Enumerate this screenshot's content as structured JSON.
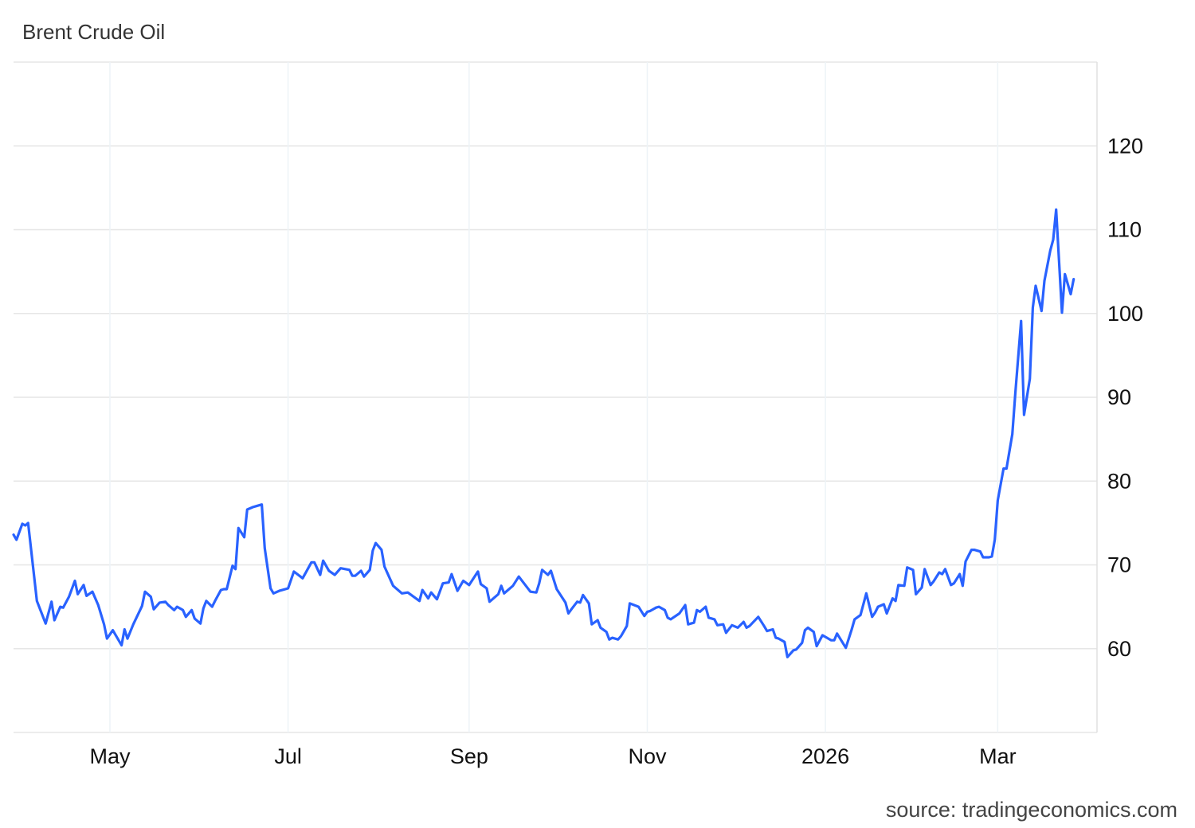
{
  "chart_data": {
    "type": "line",
    "title": "Brent Crude Oil",
    "source": "source: tradingeconomics.com",
    "xlabel": "",
    "ylabel": "",
    "xlim": [
      "2025-03-29",
      "2026-04-04"
    ],
    "ylim": [
      50,
      130
    ],
    "y_axis_position": "right",
    "grid": true,
    "x_ticks": [
      {
        "date": "2025-05-01",
        "label": "May"
      },
      {
        "date": "2025-07-01",
        "label": "Jul"
      },
      {
        "date": "2025-09-01",
        "label": "Sep"
      },
      {
        "date": "2025-11-01",
        "label": "Nov"
      },
      {
        "date": "2026-01-01",
        "label": "2026"
      },
      {
        "date": "2026-03-01",
        "label": "Mar"
      }
    ],
    "y_ticks": [
      60,
      70,
      80,
      90,
      100,
      110,
      120
    ],
    "line_color": "#2962ff",
    "series": [
      {
        "points": [
          [
            "2025-03-29",
            73.6
          ],
          [
            "2025-03-30",
            73.0
          ],
          [
            "2025-04-01",
            74.9
          ],
          [
            "2025-04-02",
            74.7
          ],
          [
            "2025-04-03",
            75.0
          ],
          [
            "2025-04-06",
            65.7
          ],
          [
            "2025-04-09",
            63.0
          ],
          [
            "2025-04-11",
            65.6
          ],
          [
            "2025-04-12",
            63.4
          ],
          [
            "2025-04-14",
            65.0
          ],
          [
            "2025-04-15",
            64.9
          ],
          [
            "2025-04-17",
            66.2
          ],
          [
            "2025-04-19",
            68.1
          ],
          [
            "2025-04-20",
            66.5
          ],
          [
            "2025-04-22",
            67.6
          ],
          [
            "2025-04-23",
            66.3
          ],
          [
            "2025-04-25",
            66.8
          ],
          [
            "2025-04-27",
            65.2
          ],
          [
            "2025-04-29",
            62.9
          ],
          [
            "2025-04-30",
            61.2
          ],
          [
            "2025-05-02",
            62.2
          ],
          [
            "2025-05-05",
            60.4
          ],
          [
            "2025-05-06",
            62.3
          ],
          [
            "2025-05-07",
            61.2
          ],
          [
            "2025-05-09",
            62.9
          ],
          [
            "2025-05-12",
            65.1
          ],
          [
            "2025-05-13",
            66.8
          ],
          [
            "2025-05-15",
            66.2
          ],
          [
            "2025-05-16",
            64.7
          ],
          [
            "2025-05-18",
            65.5
          ],
          [
            "2025-05-20",
            65.6
          ],
          [
            "2025-05-21",
            65.2
          ],
          [
            "2025-05-23",
            64.6
          ],
          [
            "2025-05-24",
            65.0
          ],
          [
            "2025-05-26",
            64.6
          ],
          [
            "2025-05-27",
            63.8
          ],
          [
            "2025-05-29",
            64.6
          ],
          [
            "2025-05-30",
            63.6
          ],
          [
            "2025-06-01",
            63.0
          ],
          [
            "2025-06-02",
            64.8
          ],
          [
            "2025-06-03",
            65.7
          ],
          [
            "2025-06-05",
            65.0
          ],
          [
            "2025-06-06",
            65.7
          ],
          [
            "2025-06-08",
            67.0
          ],
          [
            "2025-06-09",
            67.1
          ],
          [
            "2025-06-10",
            67.1
          ],
          [
            "2025-06-12",
            69.9
          ],
          [
            "2025-06-13",
            69.5
          ],
          [
            "2025-06-14",
            74.4
          ],
          [
            "2025-06-16",
            73.3
          ],
          [
            "2025-06-17",
            76.6
          ],
          [
            "2025-06-19",
            76.9
          ],
          [
            "2025-06-20",
            77.0
          ],
          [
            "2025-06-22",
            77.2
          ],
          [
            "2025-06-23",
            72.0
          ],
          [
            "2025-06-25",
            67.2
          ],
          [
            "2025-06-26",
            66.6
          ],
          [
            "2025-06-28",
            66.9
          ],
          [
            "2025-06-29",
            67.0
          ],
          [
            "2025-07-01",
            67.2
          ],
          [
            "2025-07-03",
            69.2
          ],
          [
            "2025-07-06",
            68.4
          ],
          [
            "2025-07-09",
            70.3
          ],
          [
            "2025-07-10",
            70.3
          ],
          [
            "2025-07-12",
            68.8
          ],
          [
            "2025-07-13",
            70.5
          ],
          [
            "2025-07-15",
            69.3
          ],
          [
            "2025-07-17",
            68.8
          ],
          [
            "2025-07-19",
            69.6
          ],
          [
            "2025-07-22",
            69.4
          ],
          [
            "2025-07-23",
            68.7
          ],
          [
            "2025-07-24",
            68.7
          ],
          [
            "2025-07-26",
            69.3
          ],
          [
            "2025-07-27",
            68.6
          ],
          [
            "2025-07-29",
            69.4
          ],
          [
            "2025-07-30",
            71.7
          ],
          [
            "2025-07-31",
            72.6
          ],
          [
            "2025-08-02",
            71.8
          ],
          [
            "2025-08-03",
            69.8
          ],
          [
            "2025-08-06",
            67.5
          ],
          [
            "2025-08-09",
            66.6
          ],
          [
            "2025-08-11",
            66.7
          ],
          [
            "2025-08-15",
            65.7
          ],
          [
            "2025-08-16",
            67.0
          ],
          [
            "2025-08-18",
            66.0
          ],
          [
            "2025-08-19",
            66.7
          ],
          [
            "2025-08-21",
            65.9
          ],
          [
            "2025-08-23",
            67.8
          ],
          [
            "2025-08-25",
            67.9
          ],
          [
            "2025-08-26",
            68.9
          ],
          [
            "2025-08-28",
            66.9
          ],
          [
            "2025-08-30",
            68.1
          ],
          [
            "2025-09-01",
            67.6
          ],
          [
            "2025-09-04",
            69.2
          ],
          [
            "2025-09-05",
            67.7
          ],
          [
            "2025-09-07",
            67.2
          ],
          [
            "2025-09-08",
            65.6
          ],
          [
            "2025-09-11",
            66.5
          ],
          [
            "2025-09-12",
            67.5
          ],
          [
            "2025-09-13",
            66.6
          ],
          [
            "2025-09-16",
            67.5
          ],
          [
            "2025-09-18",
            68.6
          ],
          [
            "2025-09-20",
            67.7
          ],
          [
            "2025-09-22",
            66.8
          ],
          [
            "2025-09-24",
            66.7
          ],
          [
            "2025-09-25",
            67.8
          ],
          [
            "2025-09-26",
            69.4
          ],
          [
            "2025-09-28",
            68.8
          ],
          [
            "2025-09-29",
            69.3
          ],
          [
            "2025-10-01",
            67.1
          ],
          [
            "2025-10-04",
            65.5
          ],
          [
            "2025-10-05",
            64.2
          ],
          [
            "2025-10-06",
            64.7
          ],
          [
            "2025-10-08",
            65.6
          ],
          [
            "2025-10-09",
            65.5
          ],
          [
            "2025-10-10",
            66.4
          ],
          [
            "2025-10-12",
            65.4
          ],
          [
            "2025-10-13",
            62.9
          ],
          [
            "2025-10-15",
            63.4
          ],
          [
            "2025-10-16",
            62.5
          ],
          [
            "2025-10-18",
            62.0
          ],
          [
            "2025-10-19",
            61.1
          ],
          [
            "2025-10-20",
            61.3
          ],
          [
            "2025-10-22",
            61.1
          ],
          [
            "2025-10-23",
            61.5
          ],
          [
            "2025-10-25",
            62.7
          ],
          [
            "2025-10-26",
            65.4
          ],
          [
            "2025-10-29",
            65.0
          ],
          [
            "2025-10-31",
            63.9
          ],
          [
            "2025-11-01",
            64.4
          ],
          [
            "2025-11-02",
            64.5
          ],
          [
            "2025-11-04",
            64.9
          ],
          [
            "2025-11-05",
            65.0
          ],
          [
            "2025-11-07",
            64.6
          ],
          [
            "2025-11-08",
            63.7
          ],
          [
            "2025-11-09",
            63.5
          ],
          [
            "2025-11-12",
            64.2
          ],
          [
            "2025-11-14",
            65.2
          ],
          [
            "2025-11-15",
            62.9
          ],
          [
            "2025-11-17",
            63.1
          ],
          [
            "2025-11-18",
            64.6
          ],
          [
            "2025-11-19",
            64.4
          ],
          [
            "2025-11-21",
            65.0
          ],
          [
            "2025-11-22",
            63.7
          ],
          [
            "2025-11-24",
            63.5
          ],
          [
            "2025-11-25",
            62.8
          ],
          [
            "2025-11-27",
            62.9
          ],
          [
            "2025-11-28",
            61.9
          ],
          [
            "2025-11-30",
            62.8
          ],
          [
            "2025-12-02",
            62.5
          ],
          [
            "2025-12-04",
            63.2
          ],
          [
            "2025-12-05",
            62.5
          ],
          [
            "2025-12-06",
            62.7
          ],
          [
            "2025-12-09",
            63.8
          ],
          [
            "2025-12-11",
            62.7
          ],
          [
            "2025-12-12",
            62.1
          ],
          [
            "2025-12-14",
            62.3
          ],
          [
            "2025-12-15",
            61.3
          ],
          [
            "2025-12-16",
            61.2
          ],
          [
            "2025-12-18",
            60.8
          ],
          [
            "2025-12-19",
            59.0
          ],
          [
            "2025-12-21",
            59.8
          ],
          [
            "2025-12-22",
            59.9
          ],
          [
            "2025-12-24",
            60.7
          ],
          [
            "2025-12-25",
            62.2
          ],
          [
            "2025-12-26",
            62.5
          ],
          [
            "2025-12-28",
            62.0
          ],
          [
            "2025-12-29",
            60.3
          ],
          [
            "2025-12-31",
            61.6
          ],
          [
            "2026-01-01",
            61.4
          ],
          [
            "2026-01-03",
            61.0
          ],
          [
            "2026-01-04",
            61.0
          ],
          [
            "2026-01-05",
            61.8
          ],
          [
            "2026-01-08",
            60.1
          ],
          [
            "2026-01-10",
            62.3
          ],
          [
            "2026-01-11",
            63.5
          ],
          [
            "2026-01-13",
            64.0
          ],
          [
            "2026-01-15",
            66.6
          ],
          [
            "2026-01-17",
            63.8
          ],
          [
            "2026-01-18",
            64.3
          ],
          [
            "2026-01-19",
            65.0
          ],
          [
            "2026-01-21",
            65.3
          ],
          [
            "2026-01-22",
            64.2
          ],
          [
            "2026-01-24",
            66.0
          ],
          [
            "2026-01-25",
            65.7
          ],
          [
            "2026-01-26",
            67.6
          ],
          [
            "2026-01-28",
            67.5
          ],
          [
            "2026-01-29",
            69.7
          ],
          [
            "2026-01-31",
            69.4
          ],
          [
            "2026-02-01",
            66.5
          ],
          [
            "2026-02-03",
            67.3
          ],
          [
            "2026-02-04",
            69.5
          ],
          [
            "2026-02-06",
            67.6
          ],
          [
            "2026-02-07",
            68.0
          ],
          [
            "2026-02-09",
            69.1
          ],
          [
            "2026-02-10",
            68.9
          ],
          [
            "2026-02-11",
            69.5
          ],
          [
            "2026-02-13",
            67.6
          ],
          [
            "2026-02-14",
            67.8
          ],
          [
            "2026-02-16",
            68.9
          ],
          [
            "2026-02-17",
            67.5
          ],
          [
            "2026-02-18",
            70.4
          ],
          [
            "2026-02-20",
            71.8
          ],
          [
            "2026-02-21",
            71.8
          ],
          [
            "2026-02-23",
            71.6
          ],
          [
            "2026-02-24",
            70.9
          ],
          [
            "2026-02-26",
            70.9
          ],
          [
            "2026-02-27",
            71.0
          ],
          [
            "2026-02-28",
            73.0
          ],
          [
            "2026-03-01",
            77.7
          ],
          [
            "2026-03-03",
            81.5
          ],
          [
            "2026-03-04",
            81.5
          ],
          [
            "2026-03-06",
            85.6
          ],
          [
            "2026-03-07",
            90.4
          ],
          [
            "2026-03-09",
            99.1
          ],
          [
            "2026-03-10",
            87.9
          ],
          [
            "2026-03-12",
            92.2
          ],
          [
            "2026-03-13",
            100.7
          ],
          [
            "2026-03-14",
            103.3
          ],
          [
            "2026-03-16",
            100.3
          ],
          [
            "2026-03-17",
            103.9
          ],
          [
            "2026-03-19",
            107.5
          ],
          [
            "2026-03-20",
            108.8
          ],
          [
            "2026-03-21",
            112.4
          ],
          [
            "2026-03-23",
            100.1
          ],
          [
            "2026-03-24",
            104.7
          ],
          [
            "2026-03-26",
            102.3
          ],
          [
            "2026-03-27",
            104.1
          ]
        ]
      }
    ]
  }
}
